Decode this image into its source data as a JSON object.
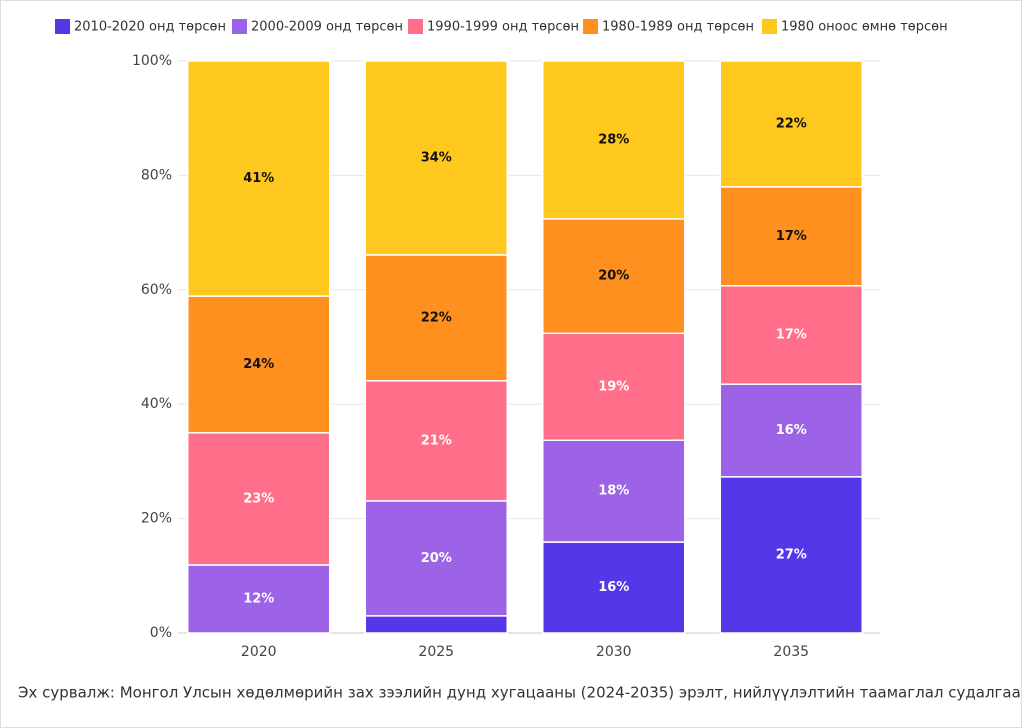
{
  "chart_data": {
    "type": "stacked_bar_percent",
    "categories": [
      "2020",
      "2025",
      "2030",
      "2035"
    ],
    "series": [
      {
        "name": "2010-2020 онд төрсөн",
        "color": "#5438e8",
        "label_color": "#ffffff",
        "values": [
          0,
          3.0,
          15.9,
          27.3
        ],
        "value_labels": [
          null,
          null,
          "16%",
          "27%"
        ]
      },
      {
        "name": "2000-2009 онд төрсөн",
        "color": "#9c63e6",
        "label_color": "#ffffff",
        "values": [
          11.9,
          20.1,
          17.8,
          16.2
        ],
        "value_labels": [
          "12%",
          "20%",
          "18%",
          "16%"
        ]
      },
      {
        "name": "1990-1999 онд төрсөн",
        "color": "#ff6f8a",
        "label_color": "#ffffff",
        "values": [
          23.1,
          21.0,
          18.7,
          17.2
        ],
        "value_labels": [
          "23%",
          "21%",
          "19%",
          "17%"
        ]
      },
      {
        "name": "1980-1989 онд төрсөн",
        "color": "#ff9020",
        "label_color": "#111111",
        "values": [
          23.9,
          22.0,
          20.0,
          17.3
        ],
        "value_labels": [
          "24%",
          "22%",
          "20%",
          "17%"
        ]
      },
      {
        "name": "1980 оноос өмнө төрсөн",
        "color": "#ffc81e",
        "label_color": "#111111",
        "values": [
          41.1,
          33.9,
          27.6,
          22.0
        ],
        "value_labels": [
          "41%",
          "34%",
          "28%",
          "22%"
        ]
      }
    ],
    "ylim": [
      0,
      100
    ],
    "yticks": [
      {
        "value": 0,
        "label": "0%"
      },
      {
        "value": 20,
        "label": "20%"
      },
      {
        "value": 40,
        "label": "40%"
      },
      {
        "value": 60,
        "label": "60%"
      },
      {
        "value": 80,
        "label": "80%"
      },
      {
        "value": 100,
        "label": "100%"
      }
    ],
    "grid": true,
    "source": "Эх сурвалж: Монгол Улсын хөдөлмөрийн зах зээлийн дунд хугацааны (2024-2035) эрэлт, нийлүүлэлтийн таамаглал судалгаа"
  }
}
